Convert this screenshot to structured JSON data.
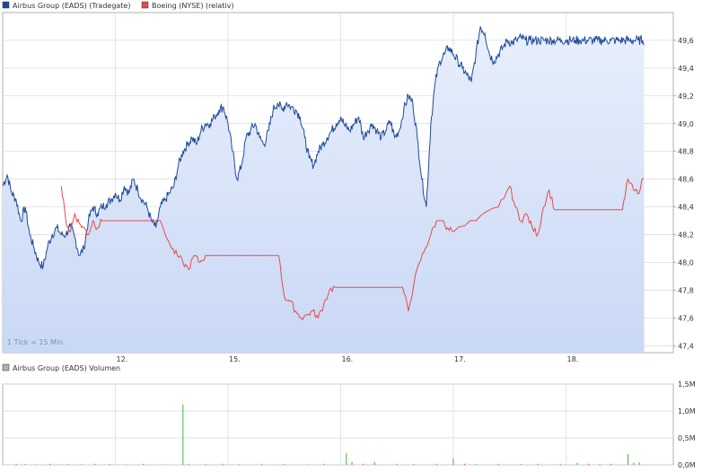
{
  "legend": {
    "series1": "Airbus Group (EADS) (Tradegate)",
    "series2": "Boeing (NYSE) (relativ)",
    "volume": "Airbus Group (EADS) Volumen"
  },
  "watermark": "1 Tick = 15 Min.",
  "colors": {
    "airbus": "#1f4a9a",
    "airbus_fill_top": "#e8effc",
    "airbus_fill_bottom": "#c9d8f5",
    "boeing": "#e84a4a",
    "grid": "#d8d8d8",
    "vol_green": "#3cb83c",
    "vol_red": "#e04848"
  },
  "chart_data": [
    {
      "type": "line",
      "title": "",
      "xlabel": "",
      "ylabel": "",
      "ylim": [
        47.35,
        49.8
      ],
      "y_ticks": [
        47.4,
        47.6,
        47.8,
        48.0,
        48.2,
        48.4,
        48.6,
        48.8,
        49.0,
        49.2,
        49.4,
        49.6
      ],
      "y_tick_labels": [
        "47,4",
        "47,6",
        "47,8",
        "48,0",
        "48,2",
        "48,4",
        "48,6",
        "48,8",
        "49,0",
        "49,2",
        "49,4",
        "49,6"
      ],
      "x_range": [
        0,
        6.0
      ],
      "x_ticks": [
        1,
        2,
        3,
        4,
        5
      ],
      "x_tick_labels": [
        "12.",
        "15.",
        "16.",
        "17.",
        "18."
      ],
      "grid": true,
      "legend_position": "top-left",
      "series": [
        {
          "name": "Airbus Group (EADS) (Tradegate)",
          "x": [
            0,
            0.04,
            0.08,
            0.12,
            0.16,
            0.2,
            0.24,
            0.28,
            0.32,
            0.36,
            0.4,
            0.44,
            0.48,
            0.52,
            0.56,
            0.6,
            0.64,
            0.68,
            0.72,
            0.76,
            0.8,
            0.84,
            0.88,
            0.92,
            0.96,
            1.0,
            1.04,
            1.08,
            1.12,
            1.16,
            1.2,
            1.24,
            1.28,
            1.32,
            1.36,
            1.4,
            1.44,
            1.48,
            1.52,
            1.56,
            1.6,
            1.64,
            1.68,
            1.72,
            1.76,
            1.8,
            1.84,
            1.88,
            1.92,
            1.96,
            2.0,
            2.04,
            2.08,
            2.12,
            2.16,
            2.2,
            2.24,
            2.28,
            2.32,
            2.36,
            2.4,
            2.44,
            2.48,
            2.52,
            2.56,
            2.6,
            2.64,
            2.68,
            2.72,
            2.76,
            2.8,
            2.84,
            2.88,
            2.92,
            2.96,
            3.0,
            3.04,
            3.08,
            3.12,
            3.16,
            3.2,
            3.24,
            3.28,
            3.32,
            3.36,
            3.4,
            3.44,
            3.48,
            3.52,
            3.56,
            3.6,
            3.64,
            3.68,
            3.72,
            3.76,
            3.8,
            3.84,
            3.88,
            3.92,
            3.96,
            4.0,
            4.04,
            4.08,
            4.12,
            4.16,
            4.2,
            4.24,
            4.28,
            4.32,
            4.36,
            4.4,
            4.44,
            4.48,
            4.52,
            4.56,
            4.6,
            4.64,
            4.68,
            4.72,
            4.76,
            4.8,
            4.84,
            4.88,
            4.92,
            4.96,
            5.0,
            5.04,
            5.08,
            5.12,
            5.16,
            5.2,
            5.24,
            5.28,
            5.32,
            5.36,
            5.4,
            5.44,
            5.48,
            5.52,
            5.56,
            5.6,
            5.64,
            5.68,
            5.72
          ],
          "values": [
            48.55,
            48.63,
            48.5,
            48.45,
            48.3,
            48.4,
            48.2,
            48.1,
            48.0,
            47.97,
            48.12,
            48.2,
            48.25,
            48.2,
            48.2,
            48.26,
            48.18,
            48.05,
            48.1,
            48.3,
            48.4,
            48.35,
            48.4,
            48.42,
            48.45,
            48.5,
            48.45,
            48.55,
            48.5,
            48.6,
            48.52,
            48.45,
            48.4,
            48.3,
            48.25,
            48.4,
            48.45,
            48.5,
            48.55,
            48.7,
            48.8,
            48.85,
            48.9,
            48.85,
            48.95,
            49.0,
            49.0,
            49.05,
            49.1,
            49.12,
            49.0,
            48.8,
            48.6,
            48.7,
            48.9,
            48.95,
            49.0,
            48.9,
            48.85,
            48.95,
            49.1,
            49.15,
            49.1,
            49.15,
            49.12,
            49.1,
            49.05,
            48.9,
            48.75,
            48.7,
            48.8,
            48.85,
            48.9,
            48.95,
            49.0,
            49.05,
            48.98,
            48.95,
            49.0,
            49.05,
            48.9,
            48.95,
            49.0,
            48.95,
            48.9,
            48.95,
            49.02,
            48.9,
            48.95,
            49.1,
            49.2,
            49.15,
            48.9,
            48.6,
            48.4,
            49.0,
            49.3,
            49.45,
            49.5,
            49.55,
            49.5,
            49.45,
            49.4,
            49.35,
            49.3,
            49.5,
            49.7,
            49.65,
            49.5,
            49.45,
            49.5,
            49.55,
            49.6,
            49.58,
            49.6,
            49.62,
            49.6,
            49.6,
            49.6,
            49.6,
            49.6,
            49.6,
            49.6,
            49.6,
            49.6,
            49.6,
            49.6,
            49.6,
            49.6,
            49.6,
            49.6,
            49.6,
            49.6,
            49.6,
            49.6,
            49.6,
            49.6,
            49.6,
            49.6,
            49.6,
            49.6,
            49.6,
            49.6,
            49.6
          ]
        },
        {
          "name": "Boeing (NYSE) (relativ)",
          "x": [
            0.52,
            0.56,
            0.6,
            0.64,
            0.68,
            0.72,
            0.76,
            0.8,
            0.84,
            0.88,
            0.92,
            0.96,
            1.0,
            1.2,
            1.4,
            1.5,
            1.55,
            1.6,
            1.65,
            1.7,
            1.75,
            1.8,
            1.85,
            1.9,
            1.95,
            2.0,
            2.2,
            2.45,
            2.5,
            2.55,
            2.6,
            2.65,
            2.7,
            2.75,
            2.8,
            2.85,
            2.9,
            2.95,
            3.0,
            3.2,
            3.4,
            3.55,
            3.6,
            3.65,
            3.7,
            3.75,
            3.8,
            3.85,
            3.9,
            3.95,
            4.0,
            4.2,
            4.4,
            4.5,
            4.55,
            4.6,
            4.65,
            4.7,
            4.75,
            4.8,
            4.85,
            4.9,
            5.0,
            5.2,
            5.4,
            5.5,
            5.55,
            5.6,
            5.65,
            5.7
          ],
          "values": [
            48.55,
            48.3,
            48.22,
            48.35,
            48.28,
            48.25,
            48.2,
            48.3,
            48.25,
            48.3,
            48.3,
            48.3,
            48.3,
            48.3,
            48.3,
            48.1,
            48.05,
            48.0,
            47.95,
            48.05,
            48.0,
            48.05,
            48.05,
            48.05,
            48.05,
            48.05,
            48.05,
            48.05,
            47.75,
            47.72,
            47.65,
            47.6,
            47.62,
            47.65,
            47.6,
            47.7,
            47.8,
            47.82,
            47.82,
            47.82,
            47.82,
            47.82,
            47.65,
            47.85,
            48.0,
            48.1,
            48.2,
            48.3,
            48.3,
            48.25,
            48.22,
            48.3,
            48.4,
            48.55,
            48.4,
            48.3,
            48.35,
            48.25,
            48.2,
            48.4,
            48.52,
            48.38,
            48.38,
            48.38,
            48.38,
            48.38,
            48.6,
            48.52,
            48.5,
            48.65
          ]
        }
      ]
    },
    {
      "type": "bar",
      "title": "Airbus Group (EADS) Volumen",
      "xlabel": "",
      "ylabel": "",
      "ylim": [
        0,
        1.5
      ],
      "y_ticks": [
        0,
        0.5,
        1.0,
        1.5
      ],
      "y_tick_labels": [
        "0,0M",
        "0,5M",
        "1,0M",
        "1,5M"
      ],
      "x_range": [
        0,
        6.0
      ],
      "x_ticks": [
        1,
        2,
        3,
        4,
        5
      ],
      "x_tick_labels": [
        "12.",
        "15.",
        "16.",
        "17.",
        "18."
      ],
      "grid": true,
      "bars": [
        {
          "x": 0.12,
          "value": 0.02,
          "color": "red"
        },
        {
          "x": 0.2,
          "value": 0.015,
          "color": "green"
        },
        {
          "x": 0.3,
          "value": 0.01,
          "color": "red"
        },
        {
          "x": 0.42,
          "value": 0.02,
          "color": "red"
        },
        {
          "x": 0.5,
          "value": 0.01,
          "color": "green"
        },
        {
          "x": 0.58,
          "value": 0.015,
          "color": "red"
        },
        {
          "x": 0.7,
          "value": 0.01,
          "color": "red"
        },
        {
          "x": 0.82,
          "value": 0.02,
          "color": "green"
        },
        {
          "x": 0.95,
          "value": 0.015,
          "color": "red"
        },
        {
          "x": 1.1,
          "value": 0.01,
          "color": "green"
        },
        {
          "x": 1.25,
          "value": 0.02,
          "color": "red"
        },
        {
          "x": 1.42,
          "value": 0.01,
          "color": "green"
        },
        {
          "x": 1.6,
          "value": 1.12,
          "color": "green"
        },
        {
          "x": 1.65,
          "value": 0.02,
          "color": "red"
        },
        {
          "x": 1.8,
          "value": 0.015,
          "color": "green"
        },
        {
          "x": 1.95,
          "value": 0.02,
          "color": "red"
        },
        {
          "x": 2.1,
          "value": 0.01,
          "color": "red"
        },
        {
          "x": 2.3,
          "value": 0.02,
          "color": "green"
        },
        {
          "x": 2.5,
          "value": 0.015,
          "color": "red"
        },
        {
          "x": 2.7,
          "value": 0.01,
          "color": "green"
        },
        {
          "x": 2.85,
          "value": 0.02,
          "color": "red"
        },
        {
          "x": 3.05,
          "value": 0.22,
          "color": "green"
        },
        {
          "x": 3.1,
          "value": 0.05,
          "color": "red"
        },
        {
          "x": 3.2,
          "value": 0.02,
          "color": "red"
        },
        {
          "x": 3.3,
          "value": 0.05,
          "color": "red"
        },
        {
          "x": 3.5,
          "value": 0.02,
          "color": "green"
        },
        {
          "x": 3.65,
          "value": 0.015,
          "color": "red"
        },
        {
          "x": 3.85,
          "value": 0.02,
          "color": "red"
        },
        {
          "x": 4.0,
          "value": 0.12,
          "color": "green"
        },
        {
          "x": 4.1,
          "value": 0.02,
          "color": "red"
        },
        {
          "x": 4.2,
          "value": 0.015,
          "color": "green"
        },
        {
          "x": 4.4,
          "value": 0.02,
          "color": "red"
        },
        {
          "x": 4.6,
          "value": 0.015,
          "color": "green"
        },
        {
          "x": 4.75,
          "value": 0.02,
          "color": "red"
        },
        {
          "x": 4.95,
          "value": 0.02,
          "color": "green"
        },
        {
          "x": 5.1,
          "value": 0.04,
          "color": "green"
        },
        {
          "x": 5.2,
          "value": 0.02,
          "color": "red"
        },
        {
          "x": 5.3,
          "value": 0.02,
          "color": "green"
        },
        {
          "x": 5.4,
          "value": 0.02,
          "color": "red"
        },
        {
          "x": 5.55,
          "value": 0.2,
          "color": "green"
        },
        {
          "x": 5.6,
          "value": 0.04,
          "color": "red"
        },
        {
          "x": 5.65,
          "value": 0.05,
          "color": "green"
        }
      ]
    }
  ]
}
